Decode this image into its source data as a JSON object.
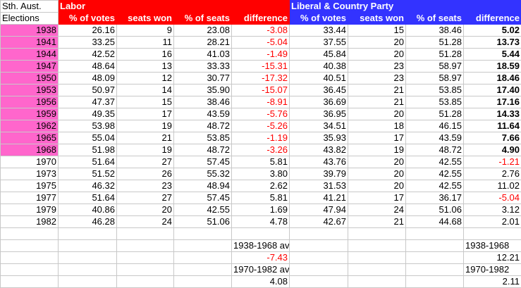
{
  "corner": {
    "line1": "Sth. Aust.",
    "line2": "Elections"
  },
  "parties": [
    {
      "name": "Labor",
      "color": "#ff0000"
    },
    {
      "name": "Liberal & Country Party",
      "color": "#3333ff"
    }
  ],
  "columns": [
    "% of votes",
    "seats won",
    "% of seats",
    "difference"
  ],
  "highlight_color": "#ff66cc",
  "negative_color": "#ff0000",
  "rows": [
    {
      "year": "1938",
      "hl": true,
      "labor": [
        "26.16",
        "9",
        "23.08",
        "-3.08"
      ],
      "lib": [
        "33.44",
        "15",
        "38.46",
        "5.02"
      ]
    },
    {
      "year": "1941",
      "hl": true,
      "labor": [
        "33.25",
        "11",
        "28.21",
        "-5.04"
      ],
      "lib": [
        "37.55",
        "20",
        "51.28",
        "13.73"
      ]
    },
    {
      "year": "1944",
      "hl": true,
      "labor": [
        "42.52",
        "16",
        "41.03",
        "-1.49"
      ],
      "lib": [
        "45.84",
        "20",
        "51.28",
        "5.44"
      ]
    },
    {
      "year": "1947",
      "hl": true,
      "labor": [
        "48.64",
        "13",
        "33.33",
        "-15.31"
      ],
      "lib": [
        "40.38",
        "23",
        "58.97",
        "18.59"
      ]
    },
    {
      "year": "1950",
      "hl": true,
      "labor": [
        "48.09",
        "12",
        "30.77",
        "-17.32"
      ],
      "lib": [
        "40.51",
        "23",
        "58.97",
        "18.46"
      ]
    },
    {
      "year": "1953",
      "hl": true,
      "labor": [
        "50.97",
        "14",
        "35.90",
        "-15.07"
      ],
      "lib": [
        "36.45",
        "21",
        "53.85",
        "17.40"
      ]
    },
    {
      "year": "1956",
      "hl": true,
      "labor": [
        "47.37",
        "15",
        "38.46",
        "-8.91"
      ],
      "lib": [
        "36.69",
        "21",
        "53.85",
        "17.16"
      ]
    },
    {
      "year": "1959",
      "hl": true,
      "labor": [
        "49.35",
        "17",
        "43.59",
        "-5.76"
      ],
      "lib": [
        "36.95",
        "20",
        "51.28",
        "14.33"
      ]
    },
    {
      "year": "1962",
      "hl": true,
      "labor": [
        "53.98",
        "19",
        "48.72",
        "-5.26"
      ],
      "lib": [
        "34.51",
        "18",
        "46.15",
        "11.64"
      ]
    },
    {
      "year": "1965",
      "hl": true,
      "labor": [
        "55.04",
        "21",
        "53.85",
        "-1.19"
      ],
      "lib": [
        "35.93",
        "17",
        "43.59",
        "7.66"
      ]
    },
    {
      "year": "1968",
      "hl": true,
      "labor": [
        "51.98",
        "19",
        "48.72",
        "-3.26"
      ],
      "lib": [
        "43.82",
        "19",
        "48.72",
        "4.90"
      ]
    },
    {
      "year": "1970",
      "hl": false,
      "labor": [
        "51.64",
        "27",
        "57.45",
        "5.81"
      ],
      "lib": [
        "43.76",
        "20",
        "42.55",
        "-1.21"
      ]
    },
    {
      "year": "1973",
      "hl": false,
      "labor": [
        "51.52",
        "26",
        "55.32",
        "3.80"
      ],
      "lib": [
        "39.79",
        "20",
        "42.55",
        "2.76"
      ]
    },
    {
      "year": "1975",
      "hl": false,
      "labor": [
        "46.32",
        "23",
        "48.94",
        "2.62"
      ],
      "lib": [
        "31.53",
        "20",
        "42.55",
        "11.02"
      ]
    },
    {
      "year": "1977",
      "hl": false,
      "labor": [
        "51.64",
        "27",
        "57.45",
        "5.81"
      ],
      "lib": [
        "41.21",
        "17",
        "36.17",
        "-5.04"
      ]
    },
    {
      "year": "1979",
      "hl": false,
      "labor": [
        "40.86",
        "20",
        "42.55",
        "1.69"
      ],
      "lib": [
        "47.94",
        "24",
        "51.06",
        "3.12"
      ]
    },
    {
      "year": "1982",
      "hl": false,
      "labor": [
        "46.28",
        "24",
        "51.06",
        "4.78"
      ],
      "lib": [
        "42.67",
        "21",
        "44.68",
        "2.01"
      ]
    }
  ],
  "averages": {
    "labor": [
      {
        "label": "1938-1968 av.",
        "value": "-7.43"
      },
      {
        "label": "1970-1982 av.",
        "value": "4.08"
      }
    ],
    "lib": [
      {
        "label": "1938-1968",
        "value": "12.21"
      },
      {
        "label": "1970-1982",
        "value": "2.11"
      }
    ]
  }
}
